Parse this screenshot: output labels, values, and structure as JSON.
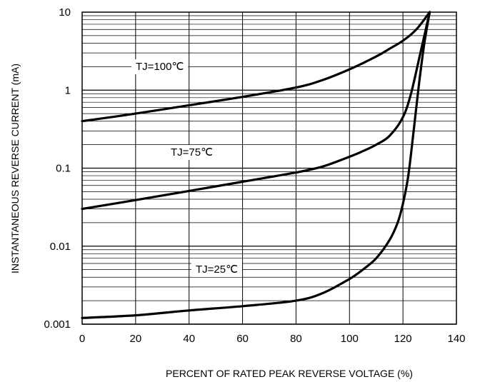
{
  "chart_data": {
    "type": "line",
    "title": "",
    "xlabel": "PERCENT OF RATED PEAK REVERSE VOLTAGE (%)",
    "ylabel": "INSTANTANEOUS REVERSE CURRENT (mA)",
    "xlim": [
      0,
      140
    ],
    "ylim": [
      0.001,
      10
    ],
    "yscale": "log",
    "grid": true,
    "x_ticks": [
      "0",
      "20",
      "40",
      "60",
      "80",
      "100",
      "120",
      "140"
    ],
    "y_ticks": [
      "0.001",
      "0.01",
      "0.1",
      "1",
      "10"
    ],
    "series": [
      {
        "name": "TJ=100℃",
        "x": [
          0,
          20,
          40,
          60,
          80,
          90,
          100,
          110,
          115,
          120,
          125,
          130
        ],
        "y": [
          0.4,
          0.5,
          0.64,
          0.82,
          1.08,
          1.35,
          1.85,
          2.7,
          3.4,
          4.3,
          6.0,
          10.0
        ]
      },
      {
        "name": "TJ=75℃",
        "x": [
          0,
          20,
          40,
          60,
          80,
          90,
          100,
          105,
          110,
          115,
          120,
          123,
          126,
          128,
          130
        ],
        "y": [
          0.03,
          0.039,
          0.051,
          0.067,
          0.088,
          0.105,
          0.14,
          0.165,
          0.2,
          0.26,
          0.45,
          0.9,
          2.5,
          5.0,
          10.0
        ]
      },
      {
        "name": "TJ=25℃",
        "x": [
          0,
          20,
          40,
          60,
          80,
          90,
          100,
          105,
          110,
          115,
          118,
          120,
          122,
          124,
          126,
          128,
          130
        ],
        "y": [
          0.0012,
          0.0013,
          0.0015,
          0.0017,
          0.002,
          0.0025,
          0.0038,
          0.005,
          0.007,
          0.012,
          0.02,
          0.035,
          0.08,
          0.3,
          1.2,
          4.0,
          10.0
        ]
      }
    ]
  }
}
